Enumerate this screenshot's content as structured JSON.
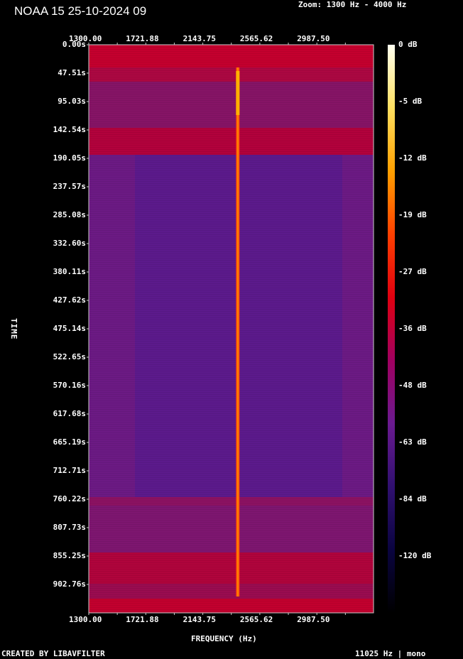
{
  "title": "NOAA 15 25-10-2024 09",
  "zoom_label": "Zoom: 1300 Hz - 4000 Hz",
  "footer_left": "CREATED BY LIBAVFILTER",
  "footer_right": "11025 Hz | mono",
  "chart_data": {
    "type": "heatmap",
    "xlabel": "FREQUENCY (Hz)",
    "ylabel": "TIME",
    "x_ticks": [
      "1300.00",
      "1721.88",
      "2143.75",
      "2565.62",
      "2987.50"
    ],
    "y_ticks": [
      "0.00s",
      "47.51s",
      "95.03s",
      "142.54s",
      "190.05s",
      "237.57s",
      "285.08s",
      "332.60s",
      "380.11s",
      "427.62s",
      "475.14s",
      "522.65s",
      "570.16s",
      "617.68s",
      "665.19s",
      "712.71s",
      "760.22s",
      "807.73s",
      "855.25s",
      "902.76s"
    ],
    "xlim": [
      1300,
      3407
    ],
    "ylim": [
      0,
      950
    ],
    "colorbar_ticks": [
      "0 dB",
      "-5 dB",
      "-12 dB",
      "-19 dB",
      "-27 dB",
      "-36 dB",
      "-48 dB",
      "-63 dB",
      "-84 dB",
      "-120 dB"
    ],
    "colorbar_colors": [
      "#fffff0",
      "#ffe060",
      "#ffa000",
      "#ff4000",
      "#e00010",
      "#a00060",
      "#6a1a90",
      "#301070",
      "#0a0440",
      "#000000"
    ],
    "carrier_frequency_hz": 2400
  }
}
